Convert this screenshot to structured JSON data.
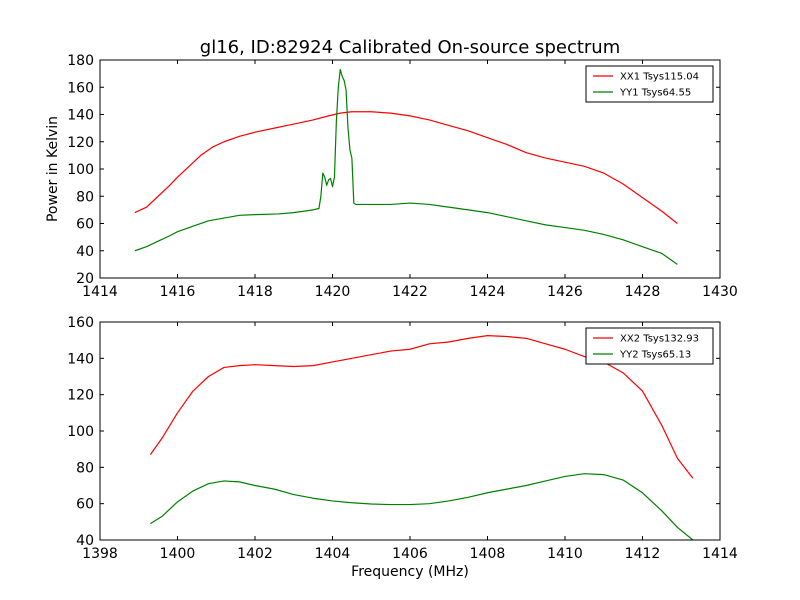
{
  "figure": {
    "title": "gl16, ID:82924 Calibrated On-source spectrum",
    "ylabel": "Power in Kelvin",
    "xlabel": "Frequency (MHz)"
  },
  "chart_data": [
    {
      "type": "line",
      "title": "gl16, ID:82924 Calibrated On-source spectrum",
      "xlabel": "",
      "ylabel": "Power in Kelvin",
      "xlim": [
        1414,
        1430
      ],
      "ylim": [
        20,
        180
      ],
      "xticks": [
        1414,
        1416,
        1418,
        1420,
        1422,
        1424,
        1426,
        1428,
        1430
      ],
      "yticks": [
        20,
        40,
        60,
        80,
        100,
        120,
        140,
        160,
        180
      ],
      "grid": false,
      "legend": "top-right",
      "series": [
        {
          "name": "XX1 Tsys115.04",
          "color": "#ff0000",
          "points": [
            [
              1414.9,
              68
            ],
            [
              1415.2,
              72
            ],
            [
              1415.5,
              80
            ],
            [
              1415.8,
              88
            ],
            [
              1416.0,
              94
            ],
            [
              1416.3,
              102
            ],
            [
              1416.6,
              110
            ],
            [
              1416.9,
              116
            ],
            [
              1417.2,
              120
            ],
            [
              1417.6,
              124
            ],
            [
              1418.0,
              127
            ],
            [
              1418.5,
              130
            ],
            [
              1419.0,
              133
            ],
            [
              1419.5,
              136
            ],
            [
              1419.9,
              139
            ],
            [
              1420.2,
              141
            ],
            [
              1420.5,
              142
            ],
            [
              1421.0,
              142
            ],
            [
              1421.5,
              141
            ],
            [
              1422.0,
              139
            ],
            [
              1422.5,
              136
            ],
            [
              1423.0,
              132
            ],
            [
              1423.5,
              128
            ],
            [
              1424.0,
              123
            ],
            [
              1424.5,
              118
            ],
            [
              1425.0,
              112
            ],
            [
              1425.5,
              108
            ],
            [
              1426.0,
              105
            ],
            [
              1426.5,
              102
            ],
            [
              1427.0,
              97
            ],
            [
              1427.5,
              89
            ],
            [
              1428.0,
              79
            ],
            [
              1428.5,
              69
            ],
            [
              1428.9,
              60
            ]
          ]
        },
        {
          "name": "YY1 Tsys64.55",
          "color": "#008000",
          "points": [
            [
              1414.9,
              40
            ],
            [
              1415.2,
              43
            ],
            [
              1415.5,
              47
            ],
            [
              1415.8,
              51
            ],
            [
              1416.0,
              54
            ],
            [
              1416.4,
              58
            ],
            [
              1416.8,
              62
            ],
            [
              1417.2,
              64
            ],
            [
              1417.6,
              66
            ],
            [
              1418.0,
              66.5
            ],
            [
              1418.6,
              67
            ],
            [
              1419.0,
              68
            ],
            [
              1419.5,
              70
            ],
            [
              1419.65,
              71
            ],
            [
              1419.7,
              80
            ],
            [
              1419.75,
              97
            ],
            [
              1419.8,
              94
            ],
            [
              1419.85,
              88
            ],
            [
              1419.9,
              92
            ],
            [
              1419.95,
              93
            ],
            [
              1420.0,
              87
            ],
            [
              1420.05,
              94
            ],
            [
              1420.1,
              135
            ],
            [
              1420.15,
              160
            ],
            [
              1420.2,
              173
            ],
            [
              1420.25,
              168
            ],
            [
              1420.3,
              165
            ],
            [
              1420.35,
              158
            ],
            [
              1420.4,
              130
            ],
            [
              1420.45,
              114
            ],
            [
              1420.5,
              108
            ],
            [
              1420.55,
              75
            ],
            [
              1420.6,
              74
            ],
            [
              1421.0,
              74
            ],
            [
              1421.5,
              74
            ],
            [
              1422.0,
              75
            ],
            [
              1422.5,
              74
            ],
            [
              1423.0,
              72
            ],
            [
              1423.5,
              70
            ],
            [
              1424.0,
              68
            ],
            [
              1424.5,
              65
            ],
            [
              1425.0,
              62
            ],
            [
              1425.5,
              59
            ],
            [
              1426.0,
              57
            ],
            [
              1426.5,
              55
            ],
            [
              1427.0,
              52
            ],
            [
              1427.5,
              48
            ],
            [
              1428.0,
              43
            ],
            [
              1428.5,
              38
            ],
            [
              1428.9,
              30
            ]
          ]
        }
      ]
    },
    {
      "type": "line",
      "title": "",
      "xlabel": "Frequency (MHz)",
      "ylabel": "",
      "xlim": [
        1398,
        1414
      ],
      "ylim": [
        40,
        160
      ],
      "xticks": [
        1398,
        1400,
        1402,
        1404,
        1406,
        1408,
        1410,
        1412,
        1414
      ],
      "yticks": [
        40,
        60,
        80,
        100,
        120,
        140,
        160
      ],
      "grid": false,
      "legend": "top-right",
      "series": [
        {
          "name": "XX2 Tsys132.93",
          "color": "#ff0000",
          "points": [
            [
              1399.3,
              87
            ],
            [
              1399.6,
              96
            ],
            [
              1400.0,
              110
            ],
            [
              1400.4,
              122
            ],
            [
              1400.8,
              130
            ],
            [
              1401.2,
              135
            ],
            [
              1401.6,
              136
            ],
            [
              1402.0,
              136.5
            ],
            [
              1402.5,
              136
            ],
            [
              1403.0,
              135.5
            ],
            [
              1403.5,
              136
            ],
            [
              1404.0,
              138
            ],
            [
              1404.5,
              140
            ],
            [
              1405.0,
              142
            ],
            [
              1405.5,
              144
            ],
            [
              1406.0,
              145
            ],
            [
              1406.5,
              148
            ],
            [
              1407.0,
              149
            ],
            [
              1407.5,
              151
            ],
            [
              1408.0,
              152.5
            ],
            [
              1408.5,
              152
            ],
            [
              1409.0,
              151
            ],
            [
              1409.5,
              148
            ],
            [
              1410.0,
              145
            ],
            [
              1410.5,
              141
            ],
            [
              1411.0,
              138
            ],
            [
              1411.5,
              132
            ],
            [
              1412.0,
              122
            ],
            [
              1412.5,
              103
            ],
            [
              1412.9,
              85
            ],
            [
              1413.3,
              74
            ]
          ]
        },
        {
          "name": "YY2 Tsys65.13",
          "color": "#008000",
          "points": [
            [
              1399.3,
              49
            ],
            [
              1399.6,
              53
            ],
            [
              1400.0,
              61
            ],
            [
              1400.4,
              67
            ],
            [
              1400.8,
              71
            ],
            [
              1401.2,
              72.5
            ],
            [
              1401.6,
              72
            ],
            [
              1402.0,
              70
            ],
            [
              1402.5,
              68
            ],
            [
              1403.0,
              65
            ],
            [
              1403.5,
              63
            ],
            [
              1404.0,
              61.5
            ],
            [
              1404.5,
              60.5
            ],
            [
              1405.0,
              59.8
            ],
            [
              1405.5,
              59.5
            ],
            [
              1406.0,
              59.5
            ],
            [
              1406.5,
              60
            ],
            [
              1407.0,
              61.5
            ],
            [
              1407.5,
              63.5
            ],
            [
              1408.0,
              66
            ],
            [
              1408.5,
              68
            ],
            [
              1409.0,
              70
            ],
            [
              1409.5,
              72.5
            ],
            [
              1410.0,
              75
            ],
            [
              1410.5,
              76.5
            ],
            [
              1411.0,
              76
            ],
            [
              1411.5,
              73
            ],
            [
              1412.0,
              66
            ],
            [
              1412.5,
              56
            ],
            [
              1412.9,
              47
            ],
            [
              1413.3,
              40
            ]
          ]
        }
      ]
    }
  ]
}
